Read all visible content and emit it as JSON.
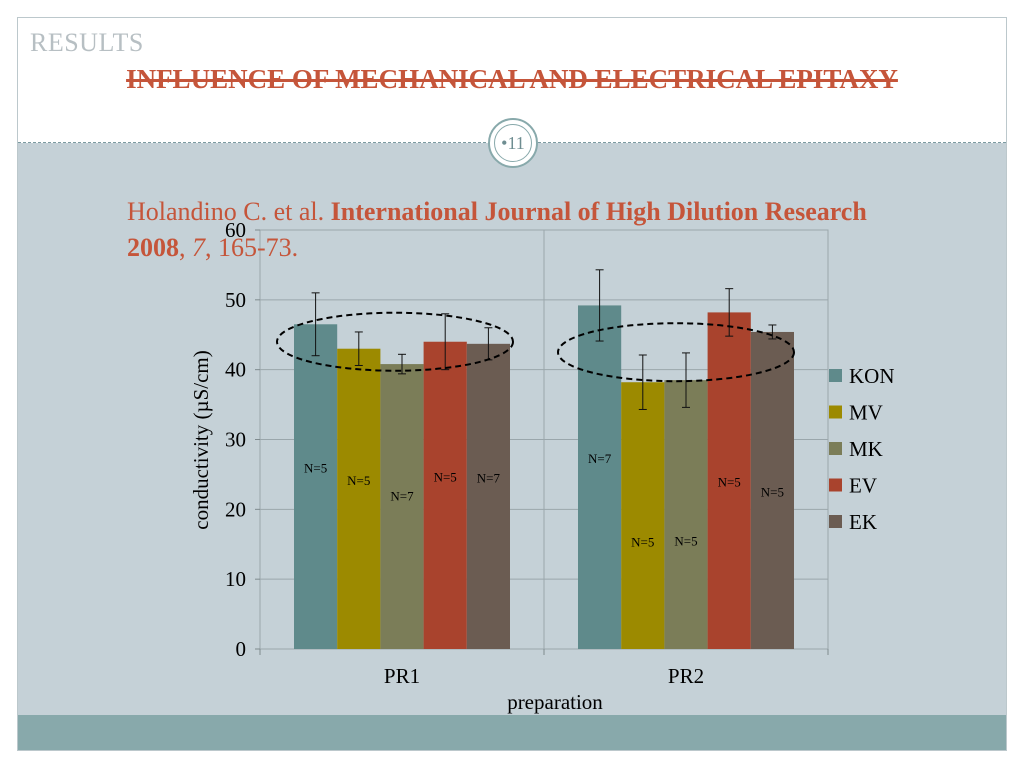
{
  "slide": {
    "section": "RESULTS",
    "title": "INFLUENCE OF MECHANICAL AND ELECTRICAL EPITAXY",
    "page_number": "•11",
    "citation": {
      "authors": "Holandino C. et al. ",
      "journal": "International Journal of High Dilution Research 2008",
      "sep1": ", ",
      "volume": "7",
      "pages": ", 165-73."
    }
  },
  "colors": {
    "title": "#c5553a",
    "background": "#c5d1d7",
    "footer": "#88a9ab"
  },
  "chart_data": {
    "type": "bar",
    "categories": [
      "PR1",
      "PR2"
    ],
    "series": [
      {
        "name": "KON",
        "color": "#5f8a8b",
        "values": [
          46.5,
          49.2
        ],
        "errors": [
          4.5,
          5.1
        ],
        "n_labels": [
          "N=5",
          "N=7"
        ]
      },
      {
        "name": "MV",
        "color": "#9c8a00",
        "values": [
          43.0,
          38.2
        ],
        "errors": [
          2.4,
          3.9
        ],
        "n_labels": [
          "N=5",
          "N=5"
        ]
      },
      {
        "name": "MK",
        "color": "#7b7d58",
        "values": [
          40.8,
          38.5
        ],
        "errors": [
          1.4,
          3.9
        ],
        "n_labels": [
          "N=7",
          "N=5"
        ]
      },
      {
        "name": "EV",
        "color": "#a9432d",
        "values": [
          44.0,
          48.2
        ],
        "errors": [
          4.0,
          3.4
        ],
        "n_labels": [
          "N=5",
          "N=5"
        ]
      },
      {
        "name": "EK",
        "color": "#6b5c52",
        "values": [
          43.7,
          45.4
        ],
        "errors": [
          2.3,
          1.0
        ],
        "n_labels": [
          "N=7",
          "N=5"
        ]
      }
    ],
    "xlabel": "preparation",
    "ylabel": "conductivity (µS/cm)",
    "ylim": [
      0,
      60
    ],
    "yticks": [
      0,
      10,
      20,
      30,
      40,
      50,
      60
    ],
    "grid": true,
    "legend": "right",
    "annotations": [
      "dashed ellipse around PR1 bar tops",
      "dashed ellipse around PR2 bar tops"
    ]
  }
}
